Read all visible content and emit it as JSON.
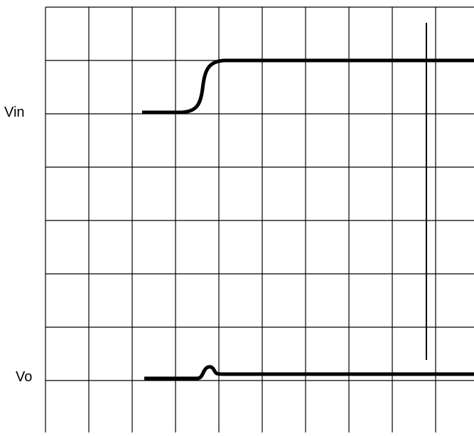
{
  "labels": {
    "vin": "Vin",
    "vo": "Vo"
  },
  "grid": {
    "columns": 10,
    "rows": 8
  },
  "colors": {
    "trace": "#000000",
    "grid": "#000000",
    "background": "#ffffff"
  }
}
